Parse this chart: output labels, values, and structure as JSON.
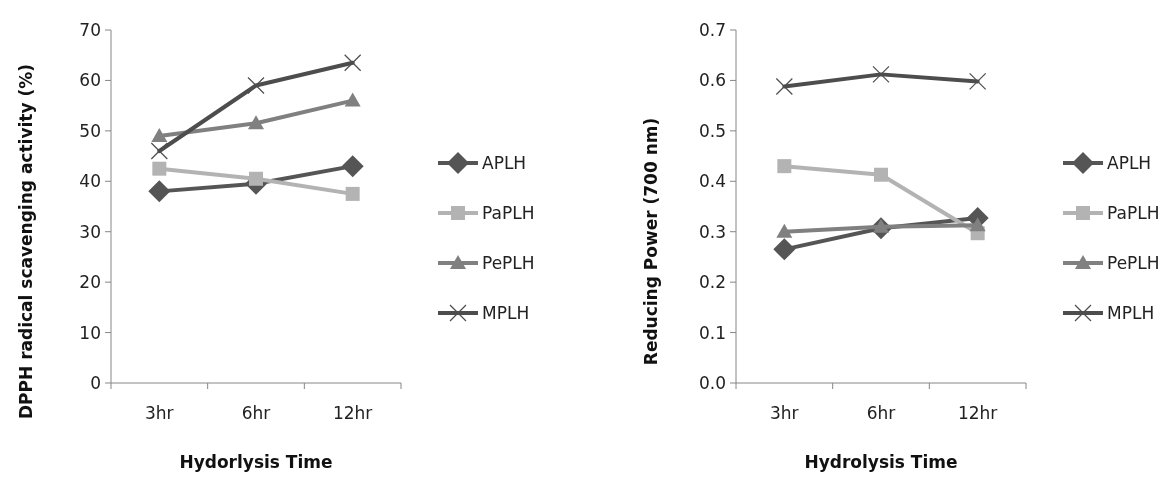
{
  "chart_data": [
    {
      "type": "line",
      "xlabel": "Hydorlysis Time",
      "ylabel": "DPPH radical scavenging activity (%)",
      "categories": [
        "3hr",
        "6hr",
        "12hr"
      ],
      "ylim": [
        0,
        70
      ],
      "yticks": [
        0,
        10,
        20,
        30,
        40,
        50,
        60,
        70
      ],
      "grid": false,
      "legend": "right",
      "series": [
        {
          "name": "APLH",
          "color": "#555555",
          "marker": "diamond",
          "values": [
            38,
            39.5,
            43
          ]
        },
        {
          "name": "PaPLH",
          "color": "#b3b3b3",
          "marker": "square",
          "values": [
            42.5,
            40.5,
            37.5
          ]
        },
        {
          "name": "PePLH",
          "color": "#808080",
          "marker": "triangle",
          "values": [
            49,
            51.5,
            56
          ]
        },
        {
          "name": "MPLH",
          "color": "#4d4d4d",
          "marker": "cross",
          "values": [
            46,
            59,
            63.5
          ]
        }
      ]
    },
    {
      "type": "line",
      "xlabel": "Hydrolysis Time",
      "ylabel": "Reducing Power (700 nm)",
      "categories": [
        "3hr",
        "6hr",
        "12hr"
      ],
      "ylim": [
        0,
        0.7
      ],
      "yticks": [
        {
          "value": 0,
          "label": "0.0"
        },
        0.1,
        0.2,
        0.3,
        0.4,
        0.5,
        0.6,
        0.7
      ],
      "grid": false,
      "legend": "right",
      "series": [
        {
          "name": "APLH",
          "color": "#555555",
          "marker": "diamond",
          "values": [
            0.265,
            0.307,
            0.327
          ]
        },
        {
          "name": "PaPLH",
          "color": "#b3b3b3",
          "marker": "square",
          "values": [
            0.43,
            0.413,
            0.297
          ]
        },
        {
          "name": "PePLH",
          "color": "#808080",
          "marker": "triangle",
          "values": [
            0.3,
            0.31,
            0.313
          ]
        },
        {
          "name": "MPLH",
          "color": "#4d4d4d",
          "marker": "cross",
          "values": [
            0.588,
            0.612,
            0.598
          ]
        }
      ]
    }
  ]
}
